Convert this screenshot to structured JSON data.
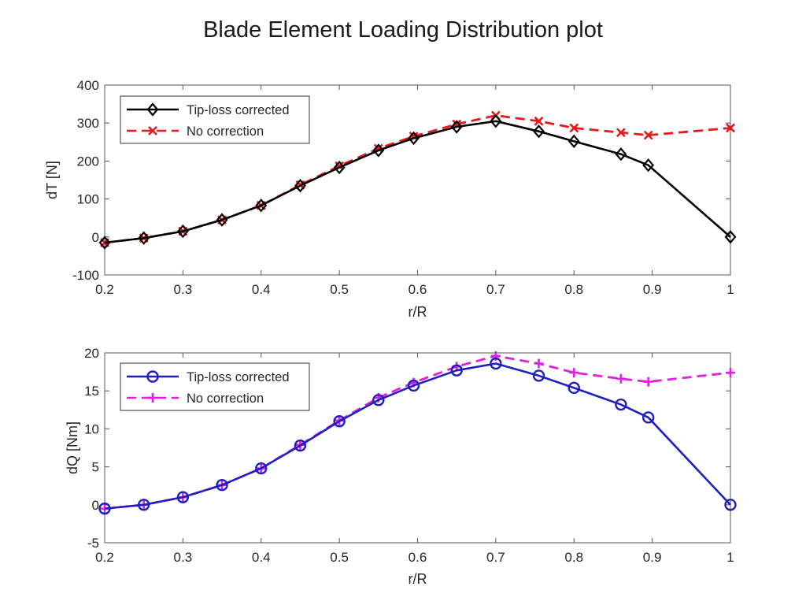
{
  "title": "Blade Element Loading Distribution plot",
  "chart_data": [
    {
      "type": "line",
      "xlabel": "r/R",
      "ylabel": "dT [N]",
      "xlim": [
        0.2,
        1.0
      ],
      "ylim": [
        -100,
        400
      ],
      "xticks": [
        "0.2",
        "0.3",
        "0.4",
        "0.5",
        "0.6",
        "0.7",
        "0.8",
        "0.9",
        "1"
      ],
      "yticks": [
        "-100",
        "0",
        "100",
        "200",
        "300",
        "400"
      ],
      "legend_position": "top-left",
      "grid": false,
      "series": [
        {
          "name": "Tip-loss corrected",
          "color": "#000000",
          "style": "solid",
          "marker": "diamond",
          "x": [
            0.2,
            0.25,
            0.3,
            0.35,
            0.4,
            0.45,
            0.5,
            0.55,
            0.595,
            0.65,
            0.7,
            0.755,
            0.8,
            0.86,
            0.895,
            1.0
          ],
          "y": [
            -15,
            -3,
            15,
            45,
            83,
            135,
            183,
            228,
            260,
            290,
            305,
            278,
            252,
            218,
            189,
            0
          ]
        },
        {
          "name": "No correction",
          "color": "#e41a1c",
          "style": "dashed",
          "marker": "x",
          "x": [
            0.2,
            0.25,
            0.3,
            0.35,
            0.4,
            0.45,
            0.5,
            0.55,
            0.595,
            0.65,
            0.7,
            0.755,
            0.8,
            0.86,
            0.895,
            1.0
          ],
          "y": [
            -15,
            -3,
            15,
            45,
            83,
            137,
            187,
            233,
            265,
            297,
            320,
            305,
            287,
            275,
            268,
            287
          ]
        }
      ]
    },
    {
      "type": "line",
      "xlabel": "r/R",
      "ylabel": "dQ [Nm]",
      "xlim": [
        0.2,
        1.0
      ],
      "ylim": [
        -5,
        20
      ],
      "xticks": [
        "0.2",
        "0.3",
        "0.4",
        "0.5",
        "0.6",
        "0.7",
        "0.8",
        "0.9",
        "1"
      ],
      "yticks": [
        "-5",
        "0",
        "5",
        "10",
        "15",
        "20"
      ],
      "legend_position": "top-left",
      "grid": false,
      "series": [
        {
          "name": "Tip-loss corrected",
          "color": "#1f1fbf",
          "style": "solid",
          "marker": "circle",
          "x": [
            0.2,
            0.25,
            0.3,
            0.35,
            0.4,
            0.45,
            0.5,
            0.55,
            0.595,
            0.65,
            0.7,
            0.755,
            0.8,
            0.86,
            0.895,
            1.0
          ],
          "y": [
            -0.5,
            0.0,
            1.0,
            2.6,
            4.8,
            7.8,
            11.0,
            13.8,
            15.7,
            17.7,
            18.6,
            17.0,
            15.4,
            13.2,
            11.5,
            0.0
          ]
        },
        {
          "name": "No correction",
          "color": "#e020e0",
          "style": "dashed",
          "marker": "plus",
          "x": [
            0.2,
            0.25,
            0.3,
            0.35,
            0.4,
            0.45,
            0.5,
            0.55,
            0.595,
            0.65,
            0.7,
            0.755,
            0.8,
            0.86,
            0.895,
            1.0
          ],
          "y": [
            -0.5,
            0.0,
            1.0,
            2.6,
            4.8,
            7.9,
            11.1,
            14.1,
            16.1,
            18.2,
            19.6,
            18.6,
            17.4,
            16.6,
            16.2,
            17.4
          ]
        }
      ]
    }
  ]
}
